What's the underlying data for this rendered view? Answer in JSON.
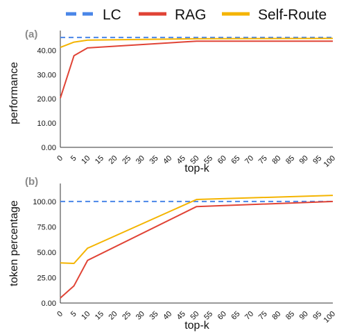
{
  "legend": [
    {
      "name": "LC",
      "color": "#4a86e8",
      "style": "dashed"
    },
    {
      "name": "RAG",
      "color": "#e04335",
      "style": "solid"
    },
    {
      "name": "Self-Route",
      "color": "#f4b400",
      "style": "solid"
    }
  ],
  "chart_data": [
    {
      "type": "line",
      "panel_label": "(a)",
      "xlabel": "top-k",
      "ylabel": "performance",
      "x": [
        0,
        5,
        10,
        15,
        20,
        25,
        30,
        35,
        40,
        45,
        50,
        55,
        60,
        65,
        70,
        75,
        80,
        85,
        90,
        95,
        100
      ],
      "ylim": [
        0,
        47
      ],
      "yticks": [
        "0.00",
        "10.00",
        "20.00",
        "30.00",
        "40.00"
      ],
      "ytick_values": [
        0,
        10,
        20,
        30,
        40
      ],
      "grid": false,
      "series": [
        {
          "name": "LC",
          "x": [
            0,
            100
          ],
          "values": [
            45.3,
            45.3
          ]
        },
        {
          "name": "RAG",
          "x": [
            0,
            5,
            10,
            50,
            100
          ],
          "values": [
            20.3,
            37.8,
            41.0,
            43.8,
            43.8
          ]
        },
        {
          "name": "Self-Route",
          "x": [
            0,
            5,
            10,
            50,
            100
          ],
          "values": [
            41.2,
            43.4,
            44.2,
            44.8,
            44.9
          ]
        }
      ]
    },
    {
      "type": "line",
      "panel_label": "(b)",
      "xlabel": "top-k",
      "ylabel": "token percentage",
      "x": [
        0,
        5,
        10,
        15,
        20,
        25,
        30,
        35,
        40,
        45,
        50,
        55,
        60,
        65,
        70,
        75,
        80,
        85,
        90,
        95,
        100
      ],
      "ylim": [
        0,
        115
      ],
      "yticks": [
        "0.00",
        "25.00",
        "50.00",
        "75.00",
        "100.00"
      ],
      "ytick_values": [
        0,
        25,
        50,
        75,
        100
      ],
      "grid": false,
      "series": [
        {
          "name": "LC",
          "x": [
            0,
            100
          ],
          "values": [
            100,
            100
          ]
        },
        {
          "name": "RAG",
          "x": [
            0,
            5,
            10,
            50,
            100
          ],
          "values": [
            5,
            17,
            42,
            95,
            100
          ]
        },
        {
          "name": "Self-Route",
          "x": [
            0,
            5,
            10,
            50,
            100
          ],
          "values": [
            39.5,
            39,
            54,
            102,
            106
          ]
        }
      ]
    }
  ]
}
